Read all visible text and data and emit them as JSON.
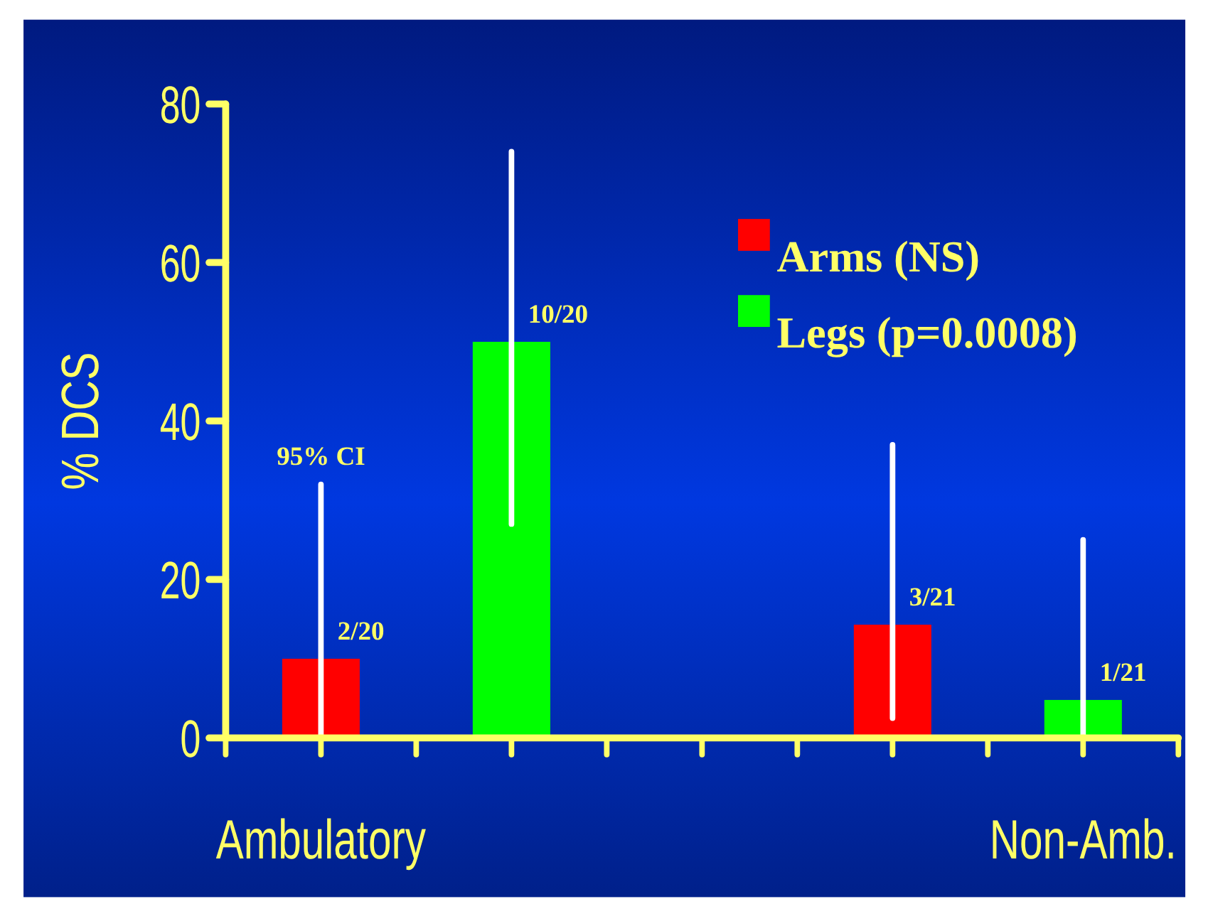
{
  "chart_data": {
    "type": "bar",
    "ylabel": "% DCS",
    "categories": [
      "Ambulatory",
      null,
      null,
      null,
      null,
      null,
      null,
      null,
      "Non-Amb."
    ],
    "series": [
      {
        "name": "Arms (NS)",
        "color": "#ff0000",
        "values": [
          10,
          null,
          null,
          null,
          null,
          null,
          14.3,
          null,
          null
        ],
        "errors": [
          [
            0,
            32
          ],
          null,
          null,
          null,
          null,
          null,
          [
            2.5,
            37
          ],
          null,
          null
        ],
        "value_labels": [
          "2/20",
          null,
          null,
          null,
          null,
          null,
          "3/21",
          null,
          null
        ]
      },
      {
        "name": "Legs (p=0.0008)",
        "color": "#00ff00",
        "values": [
          null,
          null,
          50,
          null,
          null,
          null,
          null,
          null,
          4.8
        ],
        "errors": [
          null,
          null,
          [
            27,
            74
          ],
          null,
          null,
          null,
          null,
          null,
          [
            0,
            25
          ]
        ],
        "value_labels": [
          null,
          null,
          "10/20",
          null,
          null,
          null,
          null,
          null,
          "1/21"
        ]
      }
    ],
    "ylim": [
      0,
      80
    ],
    "yticks": [
      0,
      20,
      40,
      60,
      80
    ],
    "annotations": [
      "95% CI"
    ],
    "legend": "top right"
  }
}
